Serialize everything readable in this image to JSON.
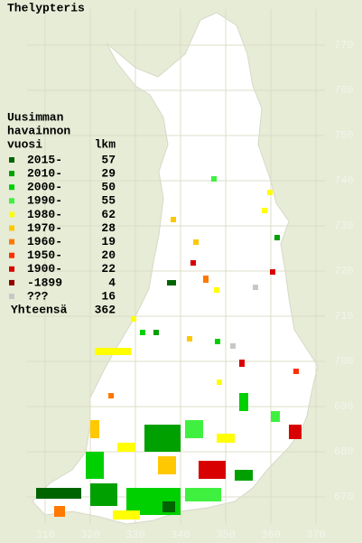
{
  "title": "Thelypteris",
  "legend": {
    "header": [
      "Uusimman",
      "havainnon",
      "vuosi"
    ],
    "count_header": "lkm",
    "entries": [
      {
        "label": "2015-",
        "count": 57,
        "color": "#006400"
      },
      {
        "label": "2010-",
        "count": 29,
        "color": "#00a000"
      },
      {
        "label": "2000-",
        "count": 50,
        "color": "#00d000"
      },
      {
        "label": "1990-",
        "count": 55,
        "color": "#40f040"
      },
      {
        "label": "1980-",
        "count": 62,
        "color": "#ffff00"
      },
      {
        "label": "1970-",
        "count": 28,
        "color": "#ffc800"
      },
      {
        "label": "1960-",
        "count": 19,
        "color": "#ff7800"
      },
      {
        "label": "1950-",
        "count": 20,
        "color": "#ff3000"
      },
      {
        "label": "1900-",
        "count": 22,
        "color": "#d80000"
      },
      {
        "label": "-1899",
        "count": 4,
        "color": "#900000"
      },
      {
        "label": "???",
        "count": 16,
        "color": "#c8c8c8"
      }
    ],
    "total_label": "Yhteensä",
    "total": 362
  },
  "axes": {
    "xticks": [
      310,
      320,
      330,
      340,
      350,
      360,
      370
    ],
    "yticks": [
      770,
      760,
      750,
      740,
      730,
      720,
      710,
      700,
      690,
      680,
      670
    ]
  }
}
